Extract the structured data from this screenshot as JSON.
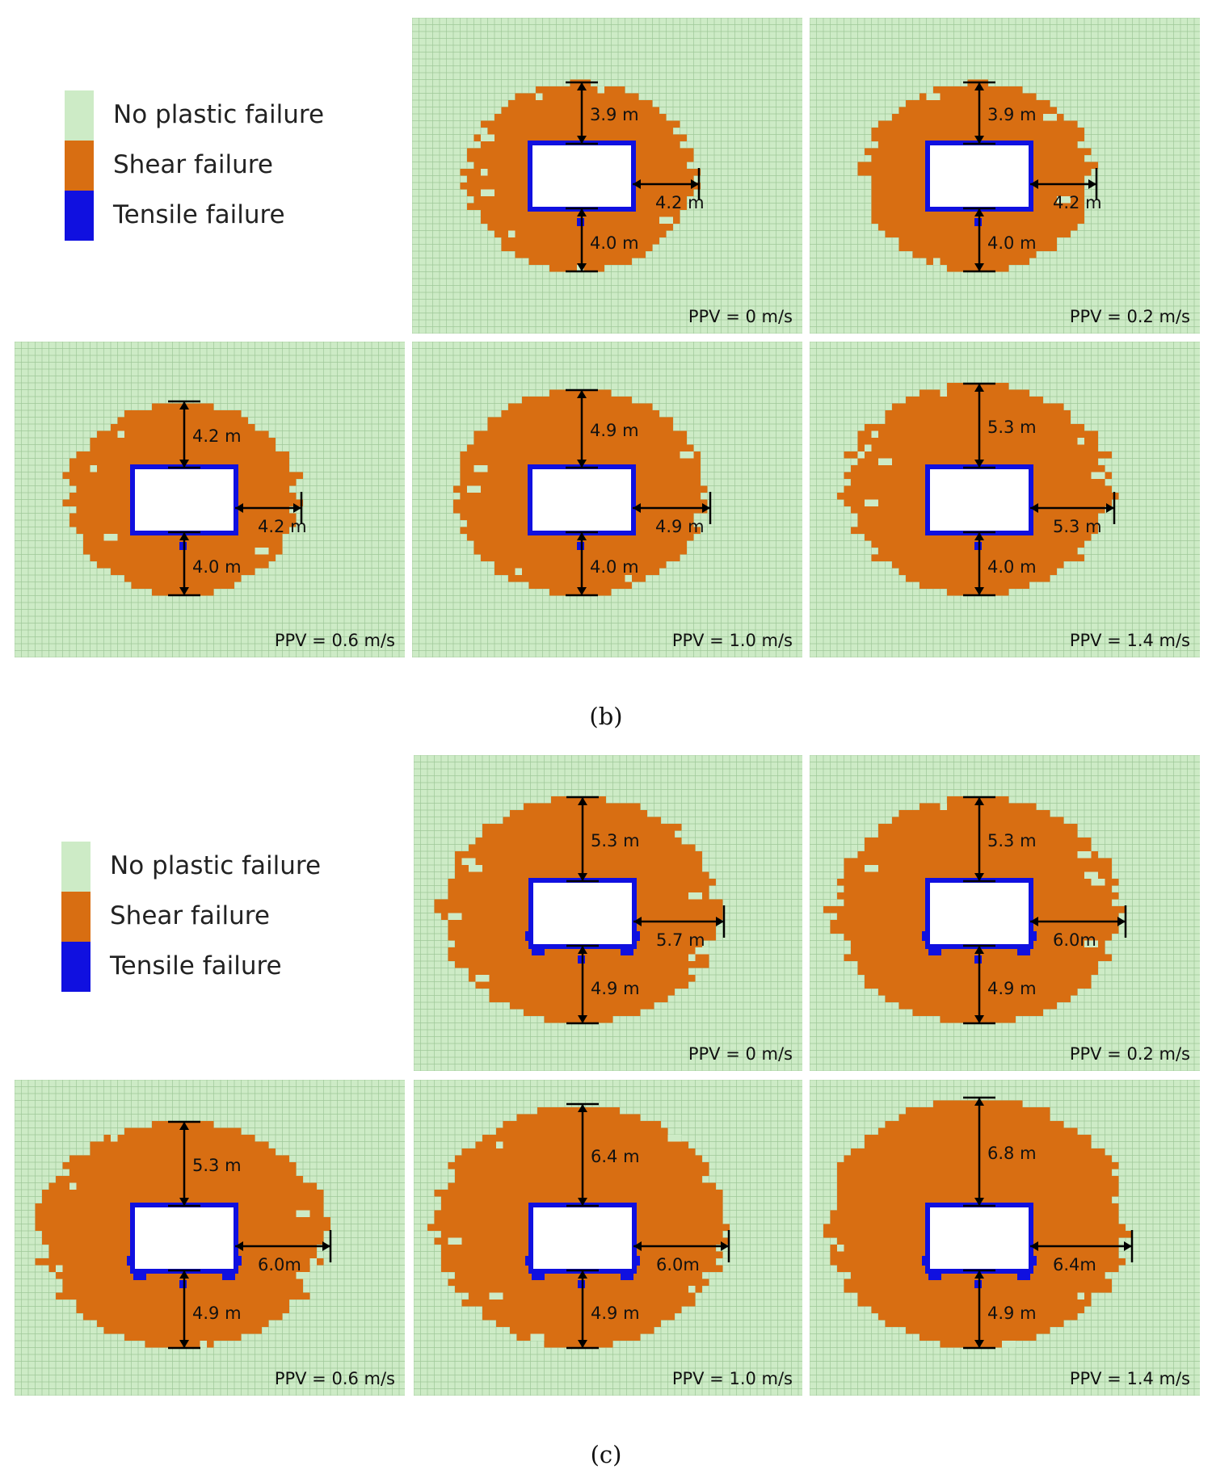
{
  "colors": {
    "no_failure": "#cdebc6",
    "grid": "#9fc898",
    "shear": "#d86e12",
    "tensile": "#1010e0",
    "opening": "#ffffff",
    "text": "#111111"
  },
  "legend": [
    {
      "label": "No plastic failure",
      "color": "#cdebc6"
    },
    {
      "label": "Shear failure",
      "color": "#d86e12"
    },
    {
      "label": "Tensile failure",
      "color": "#1010e0"
    }
  ],
  "figures": [
    {
      "caption": "(b)",
      "panels": [
        {
          "ppv": "PPV = 0 m/s",
          "top": "3.9 m",
          "side": "4.2 m",
          "bottom": "4.0 m",
          "top_r": 3.9,
          "side_r": 4.2,
          "bottom_r": 4.0
        },
        {
          "ppv": "PPV = 0.2 m/s",
          "top": "3.9 m",
          "side": "4.2 m",
          "bottom": "4.0 m",
          "top_r": 3.9,
          "side_r": 4.2,
          "bottom_r": 4.0
        },
        {
          "ppv": "PPV = 0.6 m/s",
          "top": "4.2 m",
          "side": "4.2 m",
          "bottom": "4.0 m",
          "top_r": 4.2,
          "side_r": 4.2,
          "bottom_r": 4.0
        },
        {
          "ppv": "PPV = 1.0 m/s",
          "top": "4.9 m",
          "side": "4.9 m",
          "bottom": "4.0 m",
          "top_r": 4.9,
          "side_r": 4.9,
          "bottom_r": 4.0
        },
        {
          "ppv": "PPV = 1.4 m/s",
          "top": "5.3 m",
          "side": "5.3 m",
          "bottom": "4.0 m",
          "top_r": 5.3,
          "side_r": 5.3,
          "bottom_r": 4.0
        }
      ]
    },
    {
      "caption": "(c)",
      "panels": [
        {
          "ppv": "PPV = 0 m/s",
          "top": "5.3 m",
          "side": "5.7 m",
          "bottom": "4.9 m",
          "top_r": 5.3,
          "side_r": 5.7,
          "bottom_r": 4.9
        },
        {
          "ppv": "PPV = 0.2 m/s",
          "top": "5.3 m",
          "side": "6.0m",
          "bottom": "4.9 m",
          "top_r": 5.3,
          "side_r": 6.0,
          "bottom_r": 4.9
        },
        {
          "ppv": "PPV = 0.6 m/s",
          "top": "5.3 m",
          "side": "6.0m",
          "bottom": "4.9 m",
          "top_r": 5.3,
          "side_r": 6.0,
          "bottom_r": 4.9
        },
        {
          "ppv": "PPV = 1.0 m/s",
          "top": "6.4 m",
          "side": "6.0m",
          "bottom": "4.9 m",
          "top_r": 6.4,
          "side_r": 6.0,
          "bottom_r": 4.9
        },
        {
          "ppv": "PPV = 1.4 m/s",
          "top": "6.8 m",
          "side": "6.4m",
          "bottom": "4.9 m",
          "top_r": 6.8,
          "side_r": 6.4,
          "bottom_r": 4.9
        }
      ]
    }
  ]
}
